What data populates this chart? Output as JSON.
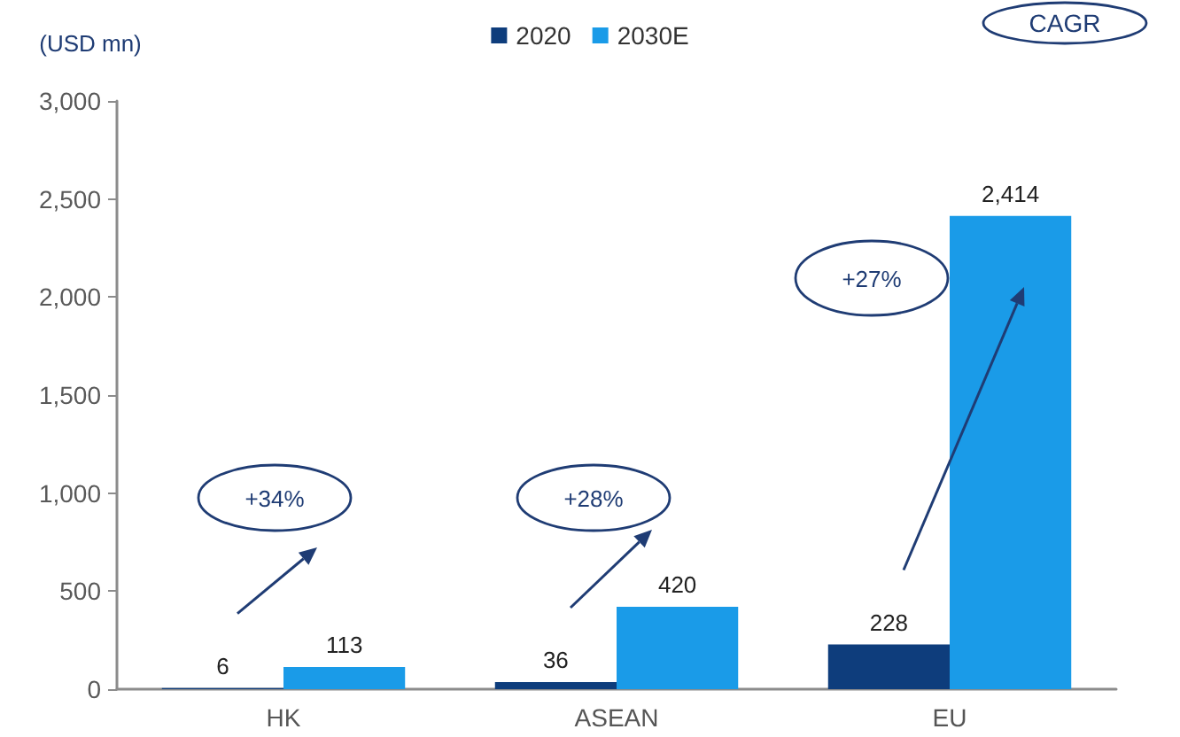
{
  "chart_data": {
    "type": "bar",
    "ylabel": "(USD mn)",
    "categories": [
      "HK",
      "ASEAN",
      "EU"
    ],
    "series": [
      {
        "name": "2020",
        "color": "#0e3d7c",
        "values": [
          6,
          36,
          228
        ],
        "value_labels": [
          "6",
          "36",
          "228"
        ]
      },
      {
        "name": "2030E",
        "color": "#1a9be8",
        "values": [
          113,
          420,
          2414
        ],
        "value_labels": [
          "113",
          "420",
          "2,414"
        ]
      }
    ],
    "ylim": [
      0,
      3000
    ],
    "yticks": [
      0,
      500,
      {
        "value": 1000,
        "label": "1,000"
      },
      {
        "value": 1500,
        "label": "1,500"
      },
      {
        "value": 2000,
        "label": "2,000"
      },
      {
        "value": 2500,
        "label": "2,500"
      },
      {
        "value": 3000,
        "label": "3,000"
      }
    ],
    "grid": false,
    "legend": "top",
    "annotations": [
      "CAGR",
      "+34%",
      "+28%",
      "+27%"
    ]
  }
}
